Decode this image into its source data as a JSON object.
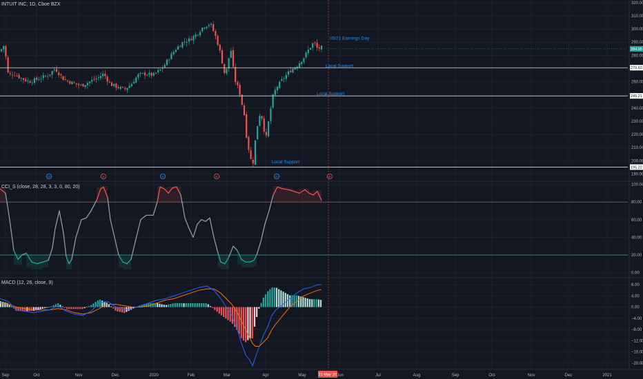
{
  "header": {
    "symbol": "INTUIT INC",
    "interval": "1D",
    "exchange": "Cboe BZX"
  },
  "legends": {
    "main": "INTUIT INC, 1D, Cboe BZX",
    "cci": "CCI_S (close, 28, 28, 3, 3, 0, 80, 20)",
    "macd": "MACD (12, 26, close, 9)"
  },
  "colors": {
    "background": "#131722",
    "grid": "#1e222d",
    "up": "#26a69a",
    "down": "#ef5350",
    "annotation": "#2196f3",
    "cci_line": "#9598a1",
    "overbought": "#ef5350",
    "oversold": "#26a69a",
    "macd_line": "#2962ff",
    "signal_line": "#ff6d00",
    "vertical_marker": "#ef5350",
    "axis_text": "#b2b5be"
  },
  "chart_data": [
    {
      "type": "candlestick",
      "title": "INTUIT INC, 1D, Cboe BZX",
      "y_ticks": [
        190,
        200,
        210,
        220,
        230,
        240,
        250,
        260,
        270,
        280,
        290,
        300,
        310,
        320
      ],
      "ylim": [
        185,
        322
      ],
      "x_axis_labels": [
        "Sep",
        "Oct",
        "Nov",
        "Dec",
        "2020",
        "Feb",
        "Mar",
        "Apr",
        "May",
        "Jun",
        "Jul",
        "Aug",
        "Sep",
        "Oct",
        "Nov",
        "Dec",
        "2021"
      ],
      "price_path": [
        [
          0,
          283
        ],
        [
          6,
          288
        ],
        [
          12,
          265
        ],
        [
          20,
          266
        ],
        [
          30,
          263
        ],
        [
          42,
          260
        ],
        [
          55,
          262
        ],
        [
          70,
          265
        ],
        [
          80,
          270
        ],
        [
          92,
          262
        ],
        [
          105,
          259
        ],
        [
          118,
          257
        ],
        [
          130,
          260
        ],
        [
          142,
          263
        ],
        [
          150,
          266
        ],
        [
          160,
          258
        ],
        [
          170,
          256
        ],
        [
          180,
          254
        ],
        [
          190,
          258
        ],
        [
          200,
          265
        ],
        [
          210,
          266
        ],
        [
          222,
          265
        ],
        [
          235,
          270
        ],
        [
          245,
          278
        ],
        [
          255,
          285
        ],
        [
          265,
          290
        ],
        [
          275,
          292
        ],
        [
          285,
          296
        ],
        [
          295,
          302
        ],
        [
          305,
          304
        ],
        [
          312,
          295
        ],
        [
          318,
          285
        ],
        [
          322,
          275
        ],
        [
          326,
          265
        ],
        [
          330,
          272
        ],
        [
          334,
          287
        ],
        [
          338,
          270
        ],
        [
          342,
          258
        ],
        [
          346,
          255
        ],
        [
          350,
          245
        ],
        [
          354,
          235
        ],
        [
          358,
          215
        ],
        [
          362,
          205
        ],
        [
          366,
          195
        ],
        [
          370,
          215
        ],
        [
          374,
          230
        ],
        [
          378,
          238
        ],
        [
          382,
          225
        ],
        [
          386,
          218
        ],
        [
          390,
          232
        ],
        [
          395,
          248
        ],
        [
          400,
          255
        ],
        [
          410,
          262
        ],
        [
          420,
          268
        ],
        [
          430,
          272
        ],
        [
          440,
          278
        ],
        [
          448,
          285
        ],
        [
          455,
          290
        ],
        [
          460,
          285
        ],
        [
          466,
          286
        ]
      ],
      "horizontal_levels": [
        270.63,
        249.21,
        195.22
      ],
      "price_labels": {
        "last": "284.95",
        "support_1": "270.63",
        "support_2": "249.21",
        "support_3": "195.22"
      },
      "annotations": {
        "earnings": "05/21 Earnings Day",
        "support_1": "Local Support",
        "support_2": "Local Support",
        "support_3": "Local Support"
      },
      "event_markers": [
        {
          "type": "D",
          "label": "D"
        },
        {
          "type": "E",
          "label": "E"
        },
        {
          "type": "D",
          "label": "D"
        },
        {
          "type": "E",
          "label": "E"
        },
        {
          "type": "D",
          "label": "D"
        },
        {
          "type": "E",
          "label": "E"
        }
      ],
      "current_date_label": "21 May '20"
    },
    {
      "type": "line",
      "title": "CCI_S (close, 28, 28, 3, 3, 0, 80, 20)",
      "y_ticks": [
        0.0,
        20.0,
        40.0,
        60.0,
        80.0,
        100.0
      ],
      "y_tick_labels": [
        "0.00",
        "20.00",
        "40.00",
        "60.00",
        "80.00",
        "100.00"
      ],
      "ylim": [
        -5,
        102
      ],
      "overbought": 80,
      "oversold": 20,
      "series": [
        {
          "points": [
            [
              0,
              95
            ],
            [
              8,
              90
            ],
            [
              14,
              60
            ],
            [
              20,
              25
            ],
            [
              26,
              15
            ],
            [
              32,
              20
            ],
            [
              38,
              22
            ],
            [
              46,
              12
            ],
            [
              54,
              10
            ],
            [
              62,
              12
            ],
            [
              70,
              14
            ],
            [
              76,
              28
            ],
            [
              80,
              50
            ],
            [
              86,
              70
            ],
            [
              92,
              45
            ],
            [
              96,
              18
            ],
            [
              100,
              10
            ],
            [
              104,
              15
            ],
            [
              110,
              40
            ],
            [
              118,
              60
            ],
            [
              125,
              62
            ],
            [
              132,
              70
            ],
            [
              140,
              82
            ],
            [
              146,
              95
            ],
            [
              150,
              97
            ],
            [
              156,
              85
            ],
            [
              160,
              60
            ],
            [
              166,
              40
            ],
            [
              172,
              20
            ],
            [
              178,
              12
            ],
            [
              184,
              10
            ],
            [
              190,
              15
            ],
            [
              196,
              35
            ],
            [
              204,
              60
            ],
            [
              212,
              65
            ],
            [
              222,
              65
            ],
            [
              228,
              80
            ],
            [
              232,
              97
            ],
            [
              238,
              95
            ],
            [
              244,
              90
            ],
            [
              250,
              96
            ],
            [
              256,
              97
            ],
            [
              262,
              88
            ],
            [
              268,
              62
            ],
            [
              274,
              50
            ],
            [
              280,
              40
            ],
            [
              286,
              55
            ],
            [
              292,
              60
            ],
            [
              298,
              58
            ],
            [
              304,
              62
            ],
            [
              310,
              40
            ],
            [
              316,
              22
            ],
            [
              320,
              12
            ],
            [
              326,
              10
            ],
            [
              332,
              18
            ],
            [
              338,
              30
            ],
            [
              344,
              25
            ],
            [
              350,
              15
            ],
            [
              356,
              12
            ],
            [
              362,
              12
            ],
            [
              368,
              14
            ],
            [
              372,
              20
            ],
            [
              378,
              35
            ],
            [
              384,
              55
            ],
            [
              390,
              70
            ],
            [
              396,
              88
            ],
            [
              402,
              97
            ],
            [
              410,
              95
            ],
            [
              418,
              94
            ],
            [
              426,
              92
            ],
            [
              434,
              90
            ],
            [
              442,
              94
            ],
            [
              448,
              90
            ],
            [
              454,
              88
            ],
            [
              460,
              92
            ],
            [
              466,
              82
            ]
          ]
        }
      ]
    },
    {
      "type": "bar+line",
      "title": "MACD (12, 26, close, 9)",
      "y_ticks": [
        -20,
        -16,
        -12,
        -8,
        -4,
        0,
        4,
        8
      ],
      "y_tick_labels": [
        "−20.00",
        "−16.00",
        "−12.00",
        "−8.00",
        "−4.00",
        "0.00",
        "4.00",
        "8.00"
      ],
      "ylim": [
        -22,
        10
      ],
      "macd_line": [
        [
          0,
          3
        ],
        [
          12,
          2
        ],
        [
          24,
          -1
        ],
        [
          36,
          -1.5
        ],
        [
          48,
          -2
        ],
        [
          60,
          -1.5
        ],
        [
          72,
          -1
        ],
        [
          84,
          0.5
        ],
        [
          96,
          -1.5
        ],
        [
          108,
          -2.5
        ],
        [
          120,
          -3
        ],
        [
          132,
          -1.5
        ],
        [
          144,
          1.5
        ],
        [
          156,
          2
        ],
        [
          168,
          0
        ],
        [
          180,
          -1
        ],
        [
          192,
          -0.5
        ],
        [
          204,
          0.5
        ],
        [
          216,
          1.5
        ],
        [
          228,
          2.5
        ],
        [
          240,
          3
        ],
        [
          252,
          4
        ],
        [
          264,
          5
        ],
        [
          276,
          6
        ],
        [
          288,
          7
        ],
        [
          300,
          7.5
        ],
        [
          310,
          6
        ],
        [
          320,
          3
        ],
        [
          328,
          0
        ],
        [
          336,
          -3
        ],
        [
          344,
          -8
        ],
        [
          350,
          -13
        ],
        [
          356,
          -17
        ],
        [
          362,
          -19
        ],
        [
          366,
          -21
        ],
        [
          370,
          -18
        ],
        [
          376,
          -14
        ],
        [
          382,
          -10
        ],
        [
          388,
          -7
        ],
        [
          394,
          -3
        ],
        [
          400,
          -1
        ],
        [
          410,
          1
        ],
        [
          420,
          3
        ],
        [
          430,
          5
        ],
        [
          440,
          6.5
        ],
        [
          450,
          7
        ],
        [
          460,
          8
        ],
        [
          466,
          8
        ]
      ],
      "signal_line": [
        [
          0,
          1.5
        ],
        [
          12,
          1
        ],
        [
          24,
          0
        ],
        [
          36,
          -0.5
        ],
        [
          48,
          -1
        ],
        [
          60,
          -1
        ],
        [
          72,
          -1
        ],
        [
          84,
          -0.5
        ],
        [
          96,
          -1
        ],
        [
          108,
          -2
        ],
        [
          120,
          -2.5
        ],
        [
          132,
          -2
        ],
        [
          144,
          -0.5
        ],
        [
          156,
          1
        ],
        [
          168,
          1
        ],
        [
          180,
          0.5
        ],
        [
          192,
          0
        ],
        [
          204,
          0
        ],
        [
          216,
          0.5
        ],
        [
          228,
          1.5
        ],
        [
          240,
          2.5
        ],
        [
          252,
          3
        ],
        [
          264,
          4
        ],
        [
          276,
          5
        ],
        [
          288,
          6
        ],
        [
          300,
          6.5
        ],
        [
          310,
          6.5
        ],
        [
          320,
          5
        ],
        [
          328,
          3
        ],
        [
          336,
          1
        ],
        [
          344,
          -2
        ],
        [
          350,
          -5
        ],
        [
          356,
          -8
        ],
        [
          362,
          -11
        ],
        [
          366,
          -13
        ],
        [
          370,
          -14
        ],
        [
          376,
          -14
        ],
        [
          382,
          -12.5
        ],
        [
          388,
          -11
        ],
        [
          394,
          -8
        ],
        [
          400,
          -6
        ],
        [
          410,
          -3
        ],
        [
          420,
          0
        ],
        [
          430,
          2
        ],
        [
          440,
          4
        ],
        [
          450,
          5
        ],
        [
          460,
          6
        ],
        [
          466,
          6.2
        ]
      ]
    }
  ]
}
